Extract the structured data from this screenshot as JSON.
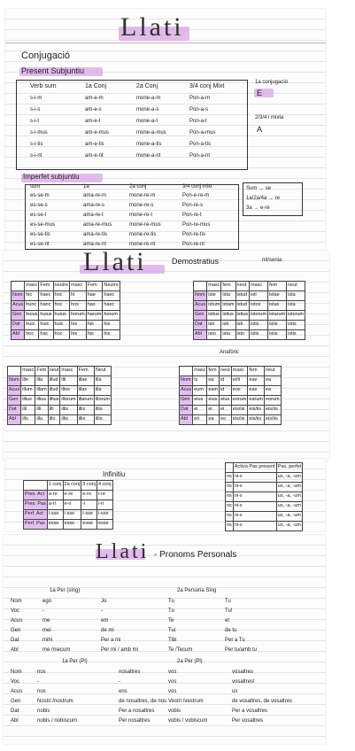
{
  "card1": {
    "title": "Llati",
    "heading": "Conjugació",
    "subheading": "Present Subjuntiu",
    "columns": [
      "Verb sum",
      "1a Conj",
      "2a Conj",
      "3/4 conj Mixt"
    ],
    "rows": [
      [
        "s-i-m",
        "am-e-m",
        "mone-a-m",
        "Pon-a-m"
      ],
      [
        "s-i-s",
        "am-e-s",
        "mone-a-s",
        "Pon-a-s"
      ],
      [
        "s-i-t",
        "am-e-t",
        "mone-a-t",
        "Pon-a-t"
      ],
      [
        "s-i-mus",
        "am-e-mus",
        "mone-a-mus",
        "Pon-a-mus"
      ],
      [
        "s-i-tis",
        "am-e-tis",
        "mone-a-tis",
        "Pon-a-tis"
      ],
      [
        "s-i-nt",
        "am-e-nt",
        "mone-a-nt",
        "Pon-a-nt"
      ]
    ],
    "side1_label": "1a conjugació",
    "side1_value": "E",
    "side2_label": "2/3/4 i mixta",
    "side2_value": "A",
    "imperf_heading": "Imperfet subjuntiu",
    "imperf_columns": [
      "sum",
      "1a",
      "2a conj",
      "3/4 conj mixt"
    ],
    "imperf_rows": [
      [
        "es-se-m",
        "ama-re-m",
        "mone-re-m",
        "Pon-e-re-m"
      ],
      [
        "es-se-s",
        "ama-re-s",
        "mone-re-s",
        "Pon-re-s"
      ],
      [
        "es-se-t",
        "ama-re-t",
        "mone-re-t",
        "Pon-re-t"
      ],
      [
        "es-se-mus",
        "ama-re-mus",
        "mone-re-mus",
        "Pon-re-mus"
      ],
      [
        "es-se-tis",
        "ama-re-tis",
        "mone-re-tis",
        "Pon-re-tis"
      ],
      [
        "es-se-nt",
        "ama-re-nt",
        "mone-re-nt",
        "Pon-re-nt"
      ]
    ],
    "imperf_side": [
      "Sum → se",
      "1a/2a/4a → re",
      "3a → e-re"
    ]
  },
  "card2": {
    "title": "Llati",
    "subtitle": "Demostratius",
    "note": "nit/senia",
    "top_left_headers": [
      "",
      "masc",
      "Fem",
      "neutre",
      "masc",
      "Fem",
      "Neutre"
    ],
    "top_left_rows": [
      [
        "Nom",
        "hic",
        "haec",
        "hoc",
        "hi",
        "hae",
        "haec"
      ],
      [
        "Acus",
        "hunc",
        "hanc",
        "hoc",
        "hos",
        "has",
        "haec"
      ],
      [
        "Gen",
        "huius",
        "huius",
        "huius",
        "horum",
        "harum",
        "horum"
      ],
      [
        "Dat",
        "huic",
        "huic",
        "huic",
        "his",
        "his",
        "his"
      ],
      [
        "Abl",
        "hoc",
        "hac",
        "hoc",
        "his",
        "his",
        "his"
      ]
    ],
    "top_right_headers": [
      "",
      "masc",
      "fem",
      "neut",
      "masc",
      "fem",
      "neut"
    ],
    "top_right_rows": [
      [
        "Nom",
        "iste",
        "ista",
        "istud",
        "isti",
        "istae",
        "ista"
      ],
      [
        "Acus",
        "istum",
        "istam",
        "istud",
        "istos",
        "istas",
        "ista"
      ],
      [
        "Gen",
        "istius",
        "istius",
        "istius",
        "istorum",
        "istarum",
        "istorum"
      ],
      [
        "Dat",
        "isti",
        "isti",
        "isti",
        "istis",
        "istis",
        "istis"
      ],
      [
        "Abl",
        "isto",
        "ista",
        "isto",
        "istis",
        "istis",
        "istis"
      ]
    ],
    "bottom_left_headers": [
      "",
      "masc",
      "Fem",
      "neut",
      "masc",
      "Fem",
      "Neut"
    ],
    "bottom_left_rows": [
      [
        "Nom",
        "ille",
        "illa",
        "illud",
        "illi",
        "illae",
        "illa"
      ],
      [
        "Acus",
        "illum",
        "illam",
        "illud",
        "illos",
        "illas",
        "illa"
      ],
      [
        "Gen",
        "illius",
        "illius",
        "illius",
        "illorum",
        "illarum",
        "illorum"
      ],
      [
        "Dat",
        "illi",
        "illi",
        "illi",
        "illis",
        "illis",
        "illis"
      ],
      [
        "Abl",
        "illo",
        "illa",
        "illo",
        "illis",
        "illis",
        "illis"
      ]
    ],
    "anaforic": "Anafòric",
    "bottom_right_headers": [
      "",
      "masc",
      "fem",
      "neut",
      "masc",
      "fem",
      "neut"
    ],
    "bottom_right_rows": [
      [
        "Nom",
        "is",
        "ea",
        "id",
        "ei/ii",
        "eae",
        "ea"
      ],
      [
        "Acus",
        "eum",
        "eam",
        "id",
        "eos",
        "eas",
        "ea"
      ],
      [
        "Gen",
        "eius",
        "eius",
        "eius",
        "eorum",
        "earum",
        "eorum"
      ],
      [
        "Dat",
        "ei",
        "ei",
        "ei",
        "eis/iis",
        "eis/iis",
        "eis/iis"
      ],
      [
        "Abl",
        "eo",
        "ea",
        "eo",
        "eis/iis",
        "eis/iis",
        "eis/iis"
      ]
    ]
  },
  "card3": {
    "heading": "Infinitiu",
    "headers": [
      "",
      "1 conj",
      "2a conj",
      "3 conj",
      "4 conj"
    ],
    "rows": [
      [
        "Pres. Act",
        "a-re",
        "e-re",
        "e-re",
        "i-re"
      ],
      [
        "Pres. Pas",
        "a-ri",
        "e-ri",
        "-i",
        "i-ri"
      ],
      [
        "Perf. Act",
        "i-sse",
        "i-sse",
        "i-sse",
        "i-sse"
      ],
      [
        "Perf. Pas",
        "esse",
        "esse",
        "esse",
        "esse"
      ]
    ],
    "right_headers": [
      "Activa Pas present",
      "Pas. perfet"
    ],
    "right_rows": [
      [
        "ns",
        "ni-s",
        "us, -a, -um"
      ],
      [
        "ns",
        "ni-s",
        "us, -a, -um"
      ],
      [
        "ns",
        "ni-s",
        "us, -a, -um"
      ],
      [
        "ns",
        "ni-s",
        "us, -a, -um"
      ],
      [
        "ns",
        "ni-s",
        "us, -a, -um"
      ],
      [
        "ns",
        "ni-s",
        "us, -a, -um"
      ]
    ]
  },
  "card4": {
    "title": "Llati",
    "subtitle": "- Pronoms Personals",
    "h1": "1a Per (sing)",
    "h2": "2a Persona Sing",
    "cases": [
      "Nom",
      "Voc",
      "Acus",
      "Gen",
      "Dat",
      "Abl"
    ],
    "sing1": [
      [
        "ego",
        "Jo"
      ],
      [
        "-",
        "-"
      ],
      [
        "me",
        "em"
      ],
      [
        "mei",
        "de mi"
      ],
      [
        "mihi",
        "Per a mi"
      ],
      [
        "me /mecum",
        "Per mi / amb mi"
      ]
    ],
    "sing2": [
      [
        "Tu",
        "Tu"
      ],
      [
        "Tu",
        "Tu!"
      ],
      [
        "Te",
        "et"
      ],
      [
        "Tui",
        "de tu"
      ],
      [
        "Tibi",
        "Per a Tu"
      ],
      [
        "Te /Tecum",
        "Per tu/amb tu"
      ]
    ],
    "h3": "1a Per (Pl)",
    "h4": "2a Per (Pl)",
    "pl1": [
      [
        "nos",
        "nosaltres"
      ],
      [
        "-",
        "-"
      ],
      [
        "nos",
        "ens"
      ],
      [
        "Nostri /nostrum",
        "de nosaltres, de nos"
      ],
      [
        "nobis",
        "Per a nosaltres"
      ],
      [
        "nobis / nobiscum",
        "Per nosaltres"
      ]
    ],
    "pl2": [
      [
        "vos",
        "vosaltres"
      ],
      [
        "vos",
        "vosaltres!"
      ],
      [
        "vos",
        "us"
      ],
      [
        "Vestri /vestrum",
        "de vosaltres, de vosaltres"
      ],
      [
        "vobis",
        "Per a vosaltres"
      ],
      [
        "vobis / vobiscum",
        "Per vosaltres"
      ]
    ]
  }
}
